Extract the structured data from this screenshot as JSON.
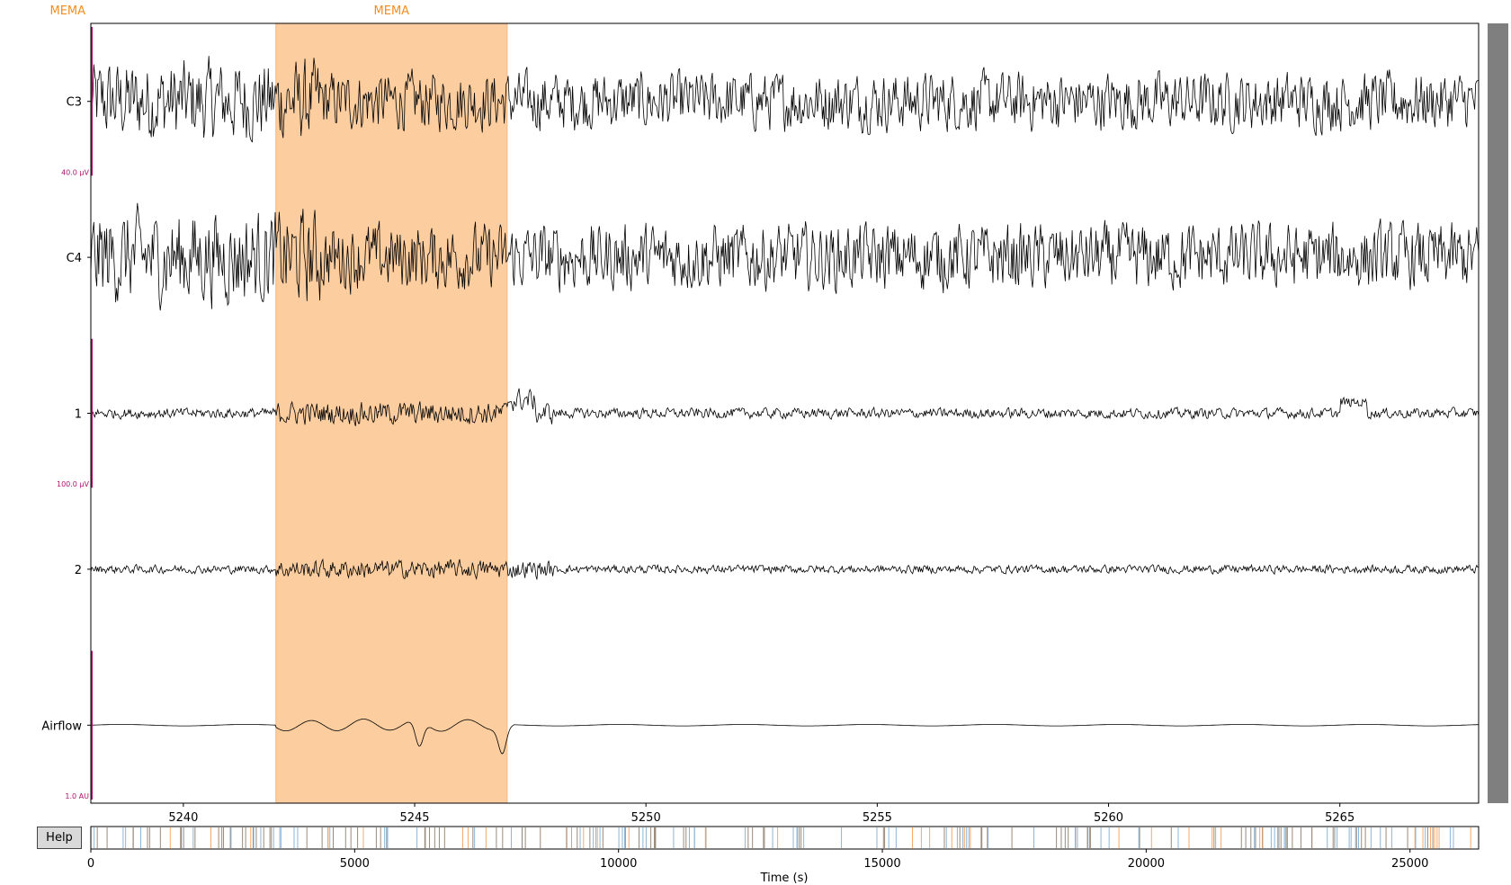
{
  "chart_data": {
    "type": "line",
    "xlabel": "Time (s)",
    "xlim": [
      5238,
      5268
    ],
    "xticks": [
      5240,
      5245,
      5250,
      5255,
      5260,
      5265
    ],
    "channels": [
      {
        "name": "C3",
        "scale_label": "40.0 µV"
      },
      {
        "name": "C4",
        "scale_label": ""
      },
      {
        "name": "1",
        "scale_label": "100.0 µV"
      },
      {
        "name": "2",
        "scale_label": ""
      },
      {
        "name": "Airflow",
        "scale_label": "1.0 AU"
      }
    ],
    "annotations": [
      {
        "label": "MEMA",
        "onset": 5242,
        "offset": 5247
      }
    ],
    "annotation_markers": [
      {
        "label": "MEMA",
        "x": 5237.5
      }
    ],
    "overview": {
      "xlim": [
        0,
        26300
      ],
      "xticks": [
        0,
        5000,
        10000,
        15000,
        20000,
        25000
      ],
      "marker_color": "#f5a868"
    },
    "colors": {
      "trace": "#000000",
      "annotation": "#fbcd9f",
      "scale": "#b0106e",
      "scrollbar": "#7f7f7f"
    }
  },
  "help_label": "Help"
}
